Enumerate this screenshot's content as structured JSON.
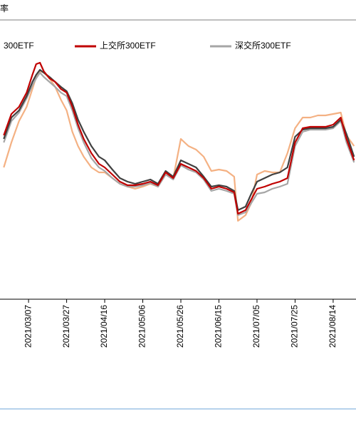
{
  "chart_data": {
    "type": "line",
    "title": "率",
    "x": [
      "2021/02/22",
      "2021/02/26",
      "2021/03/02",
      "2021/03/06",
      "2021/03/09",
      "2021/03/11",
      "2021/03/13",
      "2021/03/15",
      "2021/03/18",
      "2021/03/21",
      "2021/03/24",
      "2021/03/27",
      "2021/03/30",
      "2021/04/02",
      "2021/04/05",
      "2021/04/09",
      "2021/04/13",
      "2021/04/16",
      "2021/04/20",
      "2021/04/24",
      "2021/04/28",
      "2021/05/02",
      "2021/05/06",
      "2021/05/10",
      "2021/05/14",
      "2021/05/18",
      "2021/05/22",
      "2021/05/26",
      "2021/05/30",
      "2021/06/03",
      "2021/06/07",
      "2021/06/11",
      "2021/06/15",
      "2021/06/19",
      "2021/06/23",
      "2021/06/25",
      "2021/06/29",
      "2021/07/02",
      "2021/07/05",
      "2021/07/09",
      "2021/07/13",
      "2021/07/17",
      "2021/07/21",
      "2021/07/25",
      "2021/07/29",
      "2021/08/02",
      "2021/08/06",
      "2021/08/10",
      "2021/08/14",
      "2021/08/18",
      "2021/08/21",
      "2021/08/25"
    ],
    "xlim": [
      "2021/02/20",
      "2021/08/26"
    ],
    "xticks": [
      "2021/03/07",
      "2021/03/27",
      "2021/04/16",
      "2021/05/06",
      "2021/05/26",
      "2021/06/15",
      "2021/07/05",
      "2021/07/25",
      "2021/08/14"
    ],
    "ylim": [
      0,
      390
    ],
    "series": [
      {
        "name": "300ETF",
        "color": "#f4b183",
        "values": [
          185,
          220,
          250,
          270,
          295,
          312,
          320,
          318,
          310,
          298,
          280,
          265,
          235,
          215,
          200,
          185,
          178,
          178,
          170,
          162,
          158,
          155,
          158,
          162,
          158,
          175,
          170,
          225,
          215,
          210,
          200,
          180,
          182,
          180,
          172,
          110,
          118,
          135,
          175,
          180,
          178,
          178,
          205,
          240,
          255,
          255,
          258,
          258,
          260,
          262,
          230,
          215
        ]
      },
      {
        "name": "上交所300ETF",
        "color": "#c00000",
        "values": [
          230,
          260,
          270,
          290,
          315,
          330,
          332,
          320,
          310,
          305,
          295,
          290,
          270,
          245,
          225,
          205,
          190,
          185,
          175,
          165,
          160,
          160,
          162,
          165,
          160,
          178,
          170,
          190,
          185,
          180,
          170,
          155,
          158,
          155,
          150,
          120,
          125,
          140,
          155,
          158,
          162,
          165,
          170,
          220,
          240,
          242,
          242,
          242,
          245,
          255,
          225,
          195
        ]
      },
      {
        "name": "深交所300ETF",
        "color": "#a6a6a6",
        "values": [
          220,
          250,
          262,
          282,
          300,
          310,
          318,
          312,
          305,
          298,
          290,
          285,
          265,
          240,
          220,
          198,
          185,
          180,
          170,
          162,
          158,
          158,
          160,
          163,
          158,
          175,
          168,
          188,
          182,
          178,
          168,
          152,
          155,
          152,
          148,
          118,
          122,
          135,
          148,
          150,
          155,
          158,
          162,
          215,
          235,
          238,
          238,
          238,
          240,
          250,
          220,
          192
        ]
      },
      {
        "color": "#404040",
        "values": [
          225,
          255,
          265,
          285,
          305,
          315,
          322,
          318,
          312,
          305,
          298,
          292,
          275,
          252,
          235,
          215,
          200,
          195,
          182,
          170,
          165,
          162,
          165,
          168,
          162,
          180,
          172,
          195,
          190,
          185,
          172,
          158,
          160,
          158,
          152,
          125,
          130,
          148,
          165,
          170,
          175,
          178,
          185,
          228,
          238,
          240,
          240,
          240,
          242,
          252,
          232,
          200
        ]
      }
    ]
  }
}
